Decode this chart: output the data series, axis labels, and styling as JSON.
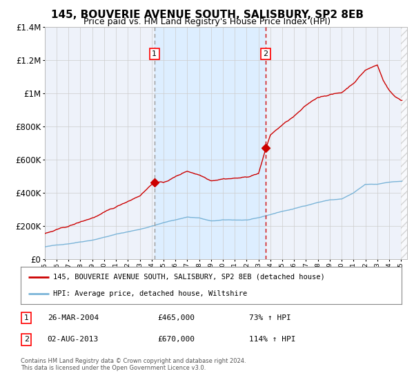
{
  "title": "145, BOUVERIE AVENUE SOUTH, SALISBURY, SP2 8EB",
  "subtitle": "Price paid vs. HM Land Registry's House Price Index (HPI)",
  "legend_line1": "145, BOUVERIE AVENUE SOUTH, SALISBURY, SP2 8EB (detached house)",
  "legend_line2": "HPI: Average price, detached house, Wiltshire",
  "footnote": "Contains HM Land Registry data © Crown copyright and database right 2024.\nThis data is licensed under the Open Government Licence v3.0.",
  "transaction1_date": "26-MAR-2004",
  "transaction1_price": "£465,000",
  "transaction1_hpi": "73% ↑ HPI",
  "transaction1_year": 2004.23,
  "transaction1_value": 465000,
  "transaction2_date": "02-AUG-2013",
  "transaction2_price": "£670,000",
  "transaction2_hpi": "114% ↑ HPI",
  "transaction2_year": 2013.59,
  "transaction2_value": 670000,
  "hpi_color": "#7ab4d8",
  "price_color": "#cc0000",
  "vline1_color": "#aaaaaa",
  "vline2_color": "#cc0000",
  "highlight_color": "#ddeeff",
  "background_color": "#ffffff",
  "plot_bg_color": "#eef2fa",
  "grid_color": "#cccccc",
  "ylim": [
    0,
    1400000
  ],
  "xlim_start": 1995.0,
  "xlim_end": 2025.5
}
